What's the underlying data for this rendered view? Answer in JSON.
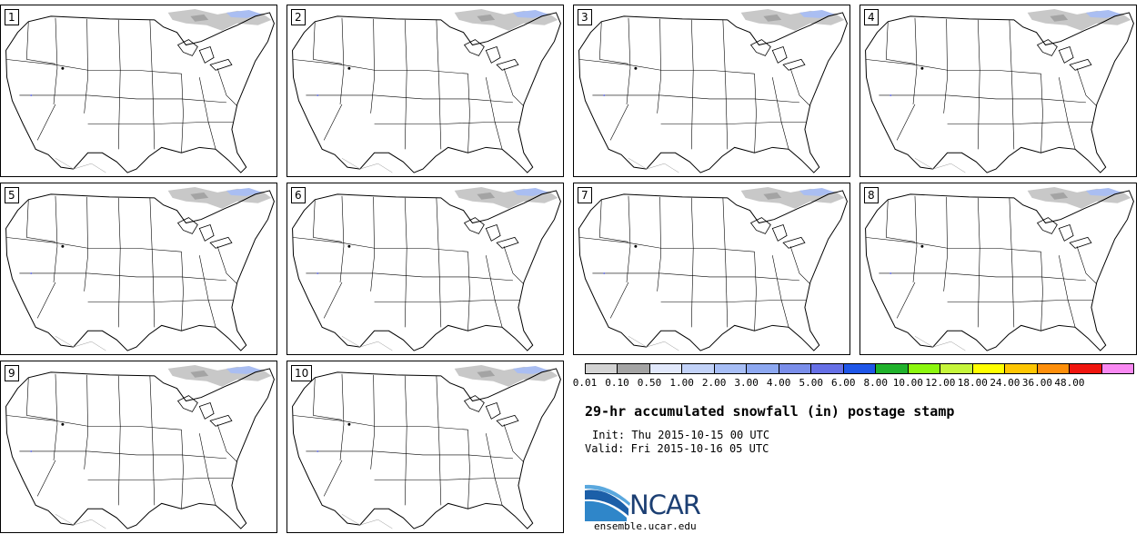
{
  "panels": [
    {
      "label": "1"
    },
    {
      "label": "2"
    },
    {
      "label": "3"
    },
    {
      "label": "4"
    },
    {
      "label": "5"
    },
    {
      "label": "6"
    },
    {
      "label": "7"
    },
    {
      "label": "8"
    },
    {
      "label": "9"
    },
    {
      "label": "10"
    }
  ],
  "colorbar": {
    "colors": [
      "#d3d3d3",
      "#a4a4a4",
      "#e1e8fb",
      "#c2d2f8",
      "#a7bef6",
      "#8da8f1",
      "#7a8eea",
      "#6670e6",
      "#1f56e8",
      "#20b22c",
      "#8cf70f",
      "#c5f53a",
      "#ffff00",
      "#fec602",
      "#fe8f0b",
      "#f0150f",
      "#f989f2"
    ],
    "labels": [
      "0.01",
      "0.10",
      "0.50",
      "1.00",
      "2.00",
      "3.00",
      "4.00",
      "5.00",
      "6.00",
      "8.00",
      "10.00",
      "12.00",
      "18.00",
      "24.00",
      "36.00",
      "48.00"
    ]
  },
  "title": "29-hr accumulated snowfall (in) postage stamp",
  "init": "Init: Thu 2015-10-15 00 UTC",
  "valid": "Valid: Fri 2015-10-16 05 UTC",
  "logo": {
    "text": "NCAR",
    "color": "#1c5fa8"
  },
  "site": "ensemble.ucar.edu"
}
